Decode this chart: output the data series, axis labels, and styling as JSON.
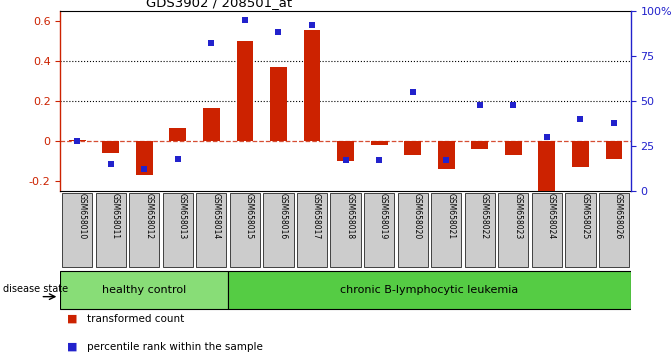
{
  "title": "GDS3902 / 208501_at",
  "samples": [
    "GSM658010",
    "GSM658011",
    "GSM658012",
    "GSM658013",
    "GSM658014",
    "GSM658015",
    "GSM658016",
    "GSM658017",
    "GSM658018",
    "GSM658019",
    "GSM658020",
    "GSM658021",
    "GSM658022",
    "GSM658023",
    "GSM658024",
    "GSM658025",
    "GSM658026"
  ],
  "bar_values": [
    0.005,
    -0.06,
    -0.17,
    0.065,
    0.165,
    0.5,
    0.37,
    0.555,
    -0.1,
    -0.02,
    -0.07,
    -0.14,
    -0.04,
    -0.07,
    -0.26,
    -0.13,
    -0.09
  ],
  "dot_values": [
    28,
    15,
    12,
    18,
    82,
    95,
    88,
    92,
    17,
    17,
    55,
    17,
    48,
    48,
    30,
    40,
    38
  ],
  "healthy_count": 5,
  "bar_color": "#cc2200",
  "dot_color": "#2222cc",
  "healthy_color": "#88dd77",
  "leukemia_color": "#55cc44",
  "label_healthy": "healthy control",
  "label_leukemia": "chronic B-lymphocytic leukemia",
  "disease_state_label": "disease state",
  "legend_bar": "transformed count",
  "legend_dot": "percentile rank within the sample",
  "ylim_left": [
    -0.25,
    0.65
  ],
  "ylim_right": [
    0,
    100
  ],
  "yticks_left": [
    -0.2,
    0.0,
    0.2,
    0.4,
    0.6
  ],
  "yticks_right": [
    0,
    25,
    50,
    75,
    100
  ],
  "hlines": [
    0.2,
    0.4
  ],
  "bg": "#ffffff",
  "label_bg": "#cccccc"
}
